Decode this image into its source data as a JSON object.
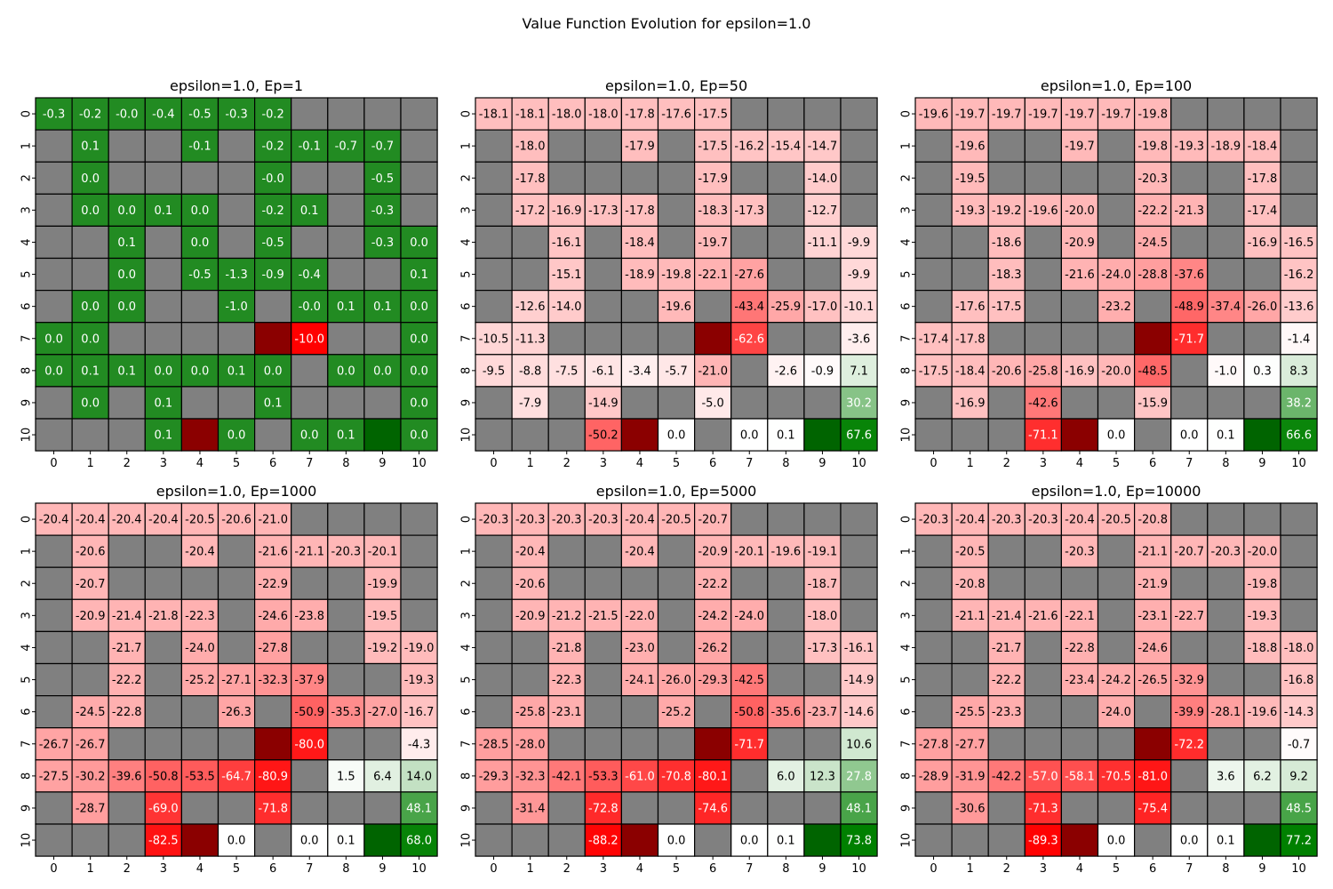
{
  "figure_title": "Value Function Evolution for epsilon=1.0",
  "chart_data": [
    {
      "type": "heatmap",
      "title": "epsilon=1.0, Ep=1",
      "x_ticks": [
        "0",
        "1",
        "2",
        "3",
        "4",
        "5",
        "6",
        "7",
        "8",
        "9",
        "10"
      ],
      "y_ticks": [
        "0",
        "1",
        "2",
        "3",
        "4",
        "5",
        "6",
        "7",
        "8",
        "9",
        "10"
      ],
      "cells": [
        [
          "-0.3",
          "-0.2",
          "-0.0",
          "-0.4",
          "-0.5",
          "-0.3",
          "-0.2",
          "W",
          "W",
          "W",
          "W"
        ],
        [
          "W",
          "0.1",
          "W",
          "W",
          "-0.1",
          "W",
          "-0.2",
          "-0.1",
          "-0.7",
          "-0.7",
          "W"
        ],
        [
          "W",
          "0.0",
          "W",
          "W",
          "W",
          "W",
          "-0.0",
          "W",
          "W",
          "-0.5",
          "W"
        ],
        [
          "W",
          "0.0",
          "0.0",
          "0.1",
          "0.0",
          "W",
          "-0.2",
          "0.1",
          "W",
          "-0.3",
          "W"
        ],
        [
          "W",
          "W",
          "0.1",
          "W",
          "0.0",
          "W",
          "-0.5",
          "W",
          "W",
          "-0.3",
          "0.0"
        ],
        [
          "W",
          "W",
          "0.0",
          "W",
          "-0.5",
          "-1.3",
          "-0.9",
          "-0.4",
          "W",
          "W",
          "0.1"
        ],
        [
          "W",
          "0.0",
          "0.0",
          "W",
          "W",
          "-1.0",
          "W",
          "-0.0",
          "0.1",
          "0.1",
          "0.0"
        ],
        [
          "0.0",
          "0.0",
          "W",
          "W",
          "W",
          "W",
          "X",
          "-10.0",
          "W",
          "W",
          "0.0"
        ],
        [
          "0.0",
          "0.1",
          "0.1",
          "0.0",
          "0.0",
          "0.1",
          "0.0",
          "W",
          "0.0",
          "0.0",
          "0.0"
        ],
        [
          "W",
          "0.0",
          "W",
          "0.1",
          "W",
          "W",
          "0.1",
          "W",
          "W",
          "W",
          "0.0"
        ],
        [
          "W",
          "W",
          "W",
          "0.1",
          "X",
          "0.0",
          "W",
          "0.0",
          "0.1",
          "G",
          "0.0"
        ]
      ]
    },
    {
      "type": "heatmap",
      "title": "epsilon=1.0, Ep=50",
      "x_ticks": [
        "0",
        "1",
        "2",
        "3",
        "4",
        "5",
        "6",
        "7",
        "8",
        "9",
        "10"
      ],
      "y_ticks": [
        "0",
        "1",
        "2",
        "3",
        "4",
        "5",
        "6",
        "7",
        "8",
        "9",
        "10"
      ],
      "cells": [
        [
          "-18.1",
          "-18.1",
          "-18.0",
          "-18.0",
          "-17.8",
          "-17.6",
          "-17.5",
          "W",
          "W",
          "W",
          "W"
        ],
        [
          "W",
          "-18.0",
          "W",
          "W",
          "-17.9",
          "W",
          "-17.5",
          "-16.2",
          "-15.4",
          "-14.7",
          "W"
        ],
        [
          "W",
          "-17.8",
          "W",
          "W",
          "W",
          "W",
          "-17.9",
          "W",
          "W",
          "-14.0",
          "W"
        ],
        [
          "W",
          "-17.2",
          "-16.9",
          "-17.3",
          "-17.8",
          "W",
          "-18.3",
          "-17.3",
          "W",
          "-12.7",
          "W"
        ],
        [
          "W",
          "W",
          "-16.1",
          "W",
          "-18.4",
          "W",
          "-19.7",
          "W",
          "W",
          "-11.1",
          "-9.9"
        ],
        [
          "W",
          "W",
          "-15.1",
          "W",
          "-18.9",
          "-19.8",
          "-22.1",
          "-27.6",
          "W",
          "W",
          "-9.9"
        ],
        [
          "W",
          "-12.6",
          "-14.0",
          "W",
          "W",
          "-19.6",
          "W",
          "-43.4",
          "-25.9",
          "-17.0",
          "-10.1"
        ],
        [
          "-10.5",
          "-11.3",
          "W",
          "W",
          "W",
          "W",
          "X",
          "-62.6",
          "W",
          "W",
          "-3.6"
        ],
        [
          "-9.5",
          "-8.8",
          "-7.5",
          "-6.1",
          "-3.4",
          "-5.7",
          "-21.0",
          "W",
          "-2.6",
          "-0.9",
          "7.1"
        ],
        [
          "W",
          "-7.9",
          "W",
          "-14.9",
          "W",
          "W",
          "-5.0",
          "W",
          "W",
          "W",
          "30.2"
        ],
        [
          "W",
          "W",
          "W",
          "-50.2",
          "X",
          "0.0",
          "W",
          "0.0",
          "0.1",
          "G",
          "67.6"
        ]
      ]
    },
    {
      "type": "heatmap",
      "title": "epsilon=1.0, Ep=100",
      "x_ticks": [
        "0",
        "1",
        "2",
        "3",
        "4",
        "5",
        "6",
        "7",
        "8",
        "9",
        "10"
      ],
      "y_ticks": [
        "0",
        "1",
        "2",
        "3",
        "4",
        "5",
        "6",
        "7",
        "8",
        "9",
        "10"
      ],
      "cells": [
        [
          "-19.6",
          "-19.7",
          "-19.7",
          "-19.7",
          "-19.7",
          "-19.7",
          "-19.8",
          "W",
          "W",
          "W",
          "W"
        ],
        [
          "W",
          "-19.6",
          "W",
          "W",
          "-19.7",
          "W",
          "-19.8",
          "-19.3",
          "-18.9",
          "-18.4",
          "W"
        ],
        [
          "W",
          "-19.5",
          "W",
          "W",
          "W",
          "W",
          "-20.3",
          "W",
          "W",
          "-17.8",
          "W"
        ],
        [
          "W",
          "-19.3",
          "-19.2",
          "-19.6",
          "-20.0",
          "W",
          "-22.2",
          "-21.3",
          "W",
          "-17.4",
          "W"
        ],
        [
          "W",
          "W",
          "-18.6",
          "W",
          "-20.9",
          "W",
          "-24.5",
          "W",
          "W",
          "-16.9",
          "-16.5"
        ],
        [
          "W",
          "W",
          "-18.3",
          "W",
          "-21.6",
          "-24.0",
          "-28.8",
          "-37.6",
          "W",
          "W",
          "-16.2"
        ],
        [
          "W",
          "-17.6",
          "-17.5",
          "W",
          "W",
          "-23.2",
          "W",
          "-48.9",
          "-37.4",
          "-26.0",
          "-13.6"
        ],
        [
          "-17.4",
          "-17.8",
          "W",
          "W",
          "W",
          "W",
          "X",
          "-71.7",
          "W",
          "W",
          "-1.4"
        ],
        [
          "-17.5",
          "-18.4",
          "-20.6",
          "-25.8",
          "-16.9",
          "-20.0",
          "-48.5",
          "W",
          "-1.0",
          "0.3",
          "8.3"
        ],
        [
          "W",
          "-16.9",
          "W",
          "-42.6",
          "W",
          "W",
          "-15.9",
          "W",
          "W",
          "W",
          "38.2"
        ],
        [
          "W",
          "W",
          "W",
          "-71.1",
          "X",
          "0.0",
          "W",
          "0.0",
          "0.1",
          "G",
          "66.6"
        ]
      ]
    },
    {
      "type": "heatmap",
      "title": "epsilon=1.0, Ep=1000",
      "x_ticks": [
        "0",
        "1",
        "2",
        "3",
        "4",
        "5",
        "6",
        "7",
        "8",
        "9",
        "10"
      ],
      "y_ticks": [
        "0",
        "1",
        "2",
        "3",
        "4",
        "5",
        "6",
        "7",
        "8",
        "9",
        "10"
      ],
      "cells": [
        [
          "-20.4",
          "-20.4",
          "-20.4",
          "-20.4",
          "-20.5",
          "-20.6",
          "-21.0",
          "W",
          "W",
          "W",
          "W"
        ],
        [
          "W",
          "-20.6",
          "W",
          "W",
          "-20.4",
          "W",
          "-21.6",
          "-21.1",
          "-20.3",
          "-20.1",
          "W"
        ],
        [
          "W",
          "-20.7",
          "W",
          "W",
          "W",
          "W",
          "-22.9",
          "W",
          "W",
          "-19.9",
          "W"
        ],
        [
          "W",
          "-20.9",
          "-21.4",
          "-21.8",
          "-22.3",
          "W",
          "-24.6",
          "-23.8",
          "W",
          "-19.5",
          "W"
        ],
        [
          "W",
          "W",
          "-21.7",
          "W",
          "-24.0",
          "W",
          "-27.8",
          "W",
          "W",
          "-19.2",
          "-19.0"
        ],
        [
          "W",
          "W",
          "-22.2",
          "W",
          "-25.2",
          "-27.1",
          "-32.3",
          "-37.9",
          "W",
          "W",
          "-19.3"
        ],
        [
          "W",
          "-24.5",
          "-22.8",
          "W",
          "W",
          "-26.3",
          "W",
          "-50.9",
          "-35.3",
          "-27.0",
          "-16.7"
        ],
        [
          "-26.7",
          "-26.7",
          "W",
          "W",
          "W",
          "W",
          "X",
          "-80.0",
          "W",
          "W",
          "-4.3"
        ],
        [
          "-27.5",
          "-30.2",
          "-39.6",
          "-50.8",
          "-53.5",
          "-64.7",
          "-80.9",
          "W",
          "1.5",
          "6.4",
          "14.0"
        ],
        [
          "W",
          "-28.7",
          "W",
          "-69.0",
          "W",
          "W",
          "-71.8",
          "W",
          "W",
          "W",
          "48.1"
        ],
        [
          "W",
          "W",
          "W",
          "-82.5",
          "X",
          "0.0",
          "W",
          "0.0",
          "0.1",
          "G",
          "68.0"
        ]
      ]
    },
    {
      "type": "heatmap",
      "title": "epsilon=1.0, Ep=5000",
      "x_ticks": [
        "0",
        "1",
        "2",
        "3",
        "4",
        "5",
        "6",
        "7",
        "8",
        "9",
        "10"
      ],
      "y_ticks": [
        "0",
        "1",
        "2",
        "3",
        "4",
        "5",
        "6",
        "7",
        "8",
        "9",
        "10"
      ],
      "cells": [
        [
          "-20.3",
          "-20.3",
          "-20.3",
          "-20.3",
          "-20.4",
          "-20.5",
          "-20.7",
          "W",
          "W",
          "W",
          "W"
        ],
        [
          "W",
          "-20.4",
          "W",
          "W",
          "-20.4",
          "W",
          "-20.9",
          "-20.1",
          "-19.6",
          "-19.1",
          "W"
        ],
        [
          "W",
          "-20.6",
          "W",
          "W",
          "W",
          "W",
          "-22.2",
          "W",
          "W",
          "-18.7",
          "W"
        ],
        [
          "W",
          "-20.9",
          "-21.2",
          "-21.5",
          "-22.0",
          "W",
          "-24.2",
          "-24.0",
          "W",
          "-18.0",
          "W"
        ],
        [
          "W",
          "W",
          "-21.8",
          "W",
          "-23.0",
          "W",
          "-26.2",
          "W",
          "W",
          "-17.3",
          "-16.1"
        ],
        [
          "W",
          "W",
          "-22.3",
          "W",
          "-24.1",
          "-26.0",
          "-29.3",
          "-42.5",
          "W",
          "W",
          "-14.9"
        ],
        [
          "W",
          "-25.8",
          "-23.1",
          "W",
          "W",
          "-25.2",
          "W",
          "-50.8",
          "-35.6",
          "-23.7",
          "-14.6"
        ],
        [
          "-28.5",
          "-28.0",
          "W",
          "W",
          "W",
          "W",
          "X",
          "-71.7",
          "W",
          "W",
          "10.6"
        ],
        [
          "-29.3",
          "-32.3",
          "-42.1",
          "-53.3",
          "-61.0",
          "-70.8",
          "-80.1",
          "W",
          "6.0",
          "12.3",
          "27.8"
        ],
        [
          "W",
          "-31.4",
          "W",
          "-72.8",
          "W",
          "W",
          "-74.6",
          "W",
          "W",
          "W",
          "48.1"
        ],
        [
          "W",
          "W",
          "W",
          "-88.2",
          "X",
          "0.0",
          "W",
          "0.0",
          "0.1",
          "G",
          "73.8"
        ]
      ]
    },
    {
      "type": "heatmap",
      "title": "epsilon=1.0, Ep=10000",
      "x_ticks": [
        "0",
        "1",
        "2",
        "3",
        "4",
        "5",
        "6",
        "7",
        "8",
        "9",
        "10"
      ],
      "y_ticks": [
        "0",
        "1",
        "2",
        "3",
        "4",
        "5",
        "6",
        "7",
        "8",
        "9",
        "10"
      ],
      "cells": [
        [
          "-20.3",
          "-20.4",
          "-20.3",
          "-20.3",
          "-20.4",
          "-20.5",
          "-20.8",
          "W",
          "W",
          "W",
          "W"
        ],
        [
          "W",
          "-20.5",
          "W",
          "W",
          "-20.3",
          "W",
          "-21.1",
          "-20.7",
          "-20.3",
          "-20.0",
          "W"
        ],
        [
          "W",
          "-20.8",
          "W",
          "W",
          "W",
          "W",
          "-21.9",
          "W",
          "W",
          "-19.8",
          "W"
        ],
        [
          "W",
          "-21.1",
          "-21.4",
          "-21.6",
          "-22.1",
          "W",
          "-23.1",
          "-22.7",
          "W",
          "-19.3",
          "W"
        ],
        [
          "W",
          "W",
          "-21.7",
          "W",
          "-22.8",
          "W",
          "-24.6",
          "W",
          "W",
          "-18.8",
          "-18.0"
        ],
        [
          "W",
          "W",
          "-22.2",
          "W",
          "-23.4",
          "-24.2",
          "-26.5",
          "-32.9",
          "W",
          "W",
          "-16.8"
        ],
        [
          "W",
          "-25.5",
          "-23.3",
          "W",
          "W",
          "-24.0",
          "W",
          "-39.9",
          "-28.1",
          "-19.6",
          "-14.3"
        ],
        [
          "-27.8",
          "-27.7",
          "W",
          "W",
          "W",
          "W",
          "X",
          "-72.2",
          "W",
          "W",
          "-0.7"
        ],
        [
          "-28.9",
          "-31.9",
          "-42.2",
          "-57.0",
          "-58.1",
          "-70.5",
          "-81.0",
          "W",
          "3.6",
          "6.2",
          "9.2"
        ],
        [
          "W",
          "-30.6",
          "W",
          "-71.3",
          "W",
          "W",
          "-75.4",
          "W",
          "W",
          "W",
          "48.5"
        ],
        [
          "W",
          "W",
          "W",
          "-89.3",
          "X",
          "0.0",
          "W",
          "0.0",
          "0.1",
          "G",
          "77.2"
        ]
      ]
    }
  ],
  "colors": {
    "wall": "#808080",
    "hazard": "#8b0000",
    "goal": "#006400",
    "grid_line": "#000000",
    "positive_full": "#008000",
    "negative_full": "#ff0000",
    "neutral": "#ffffff",
    "ep1_cell": "#228b22"
  }
}
